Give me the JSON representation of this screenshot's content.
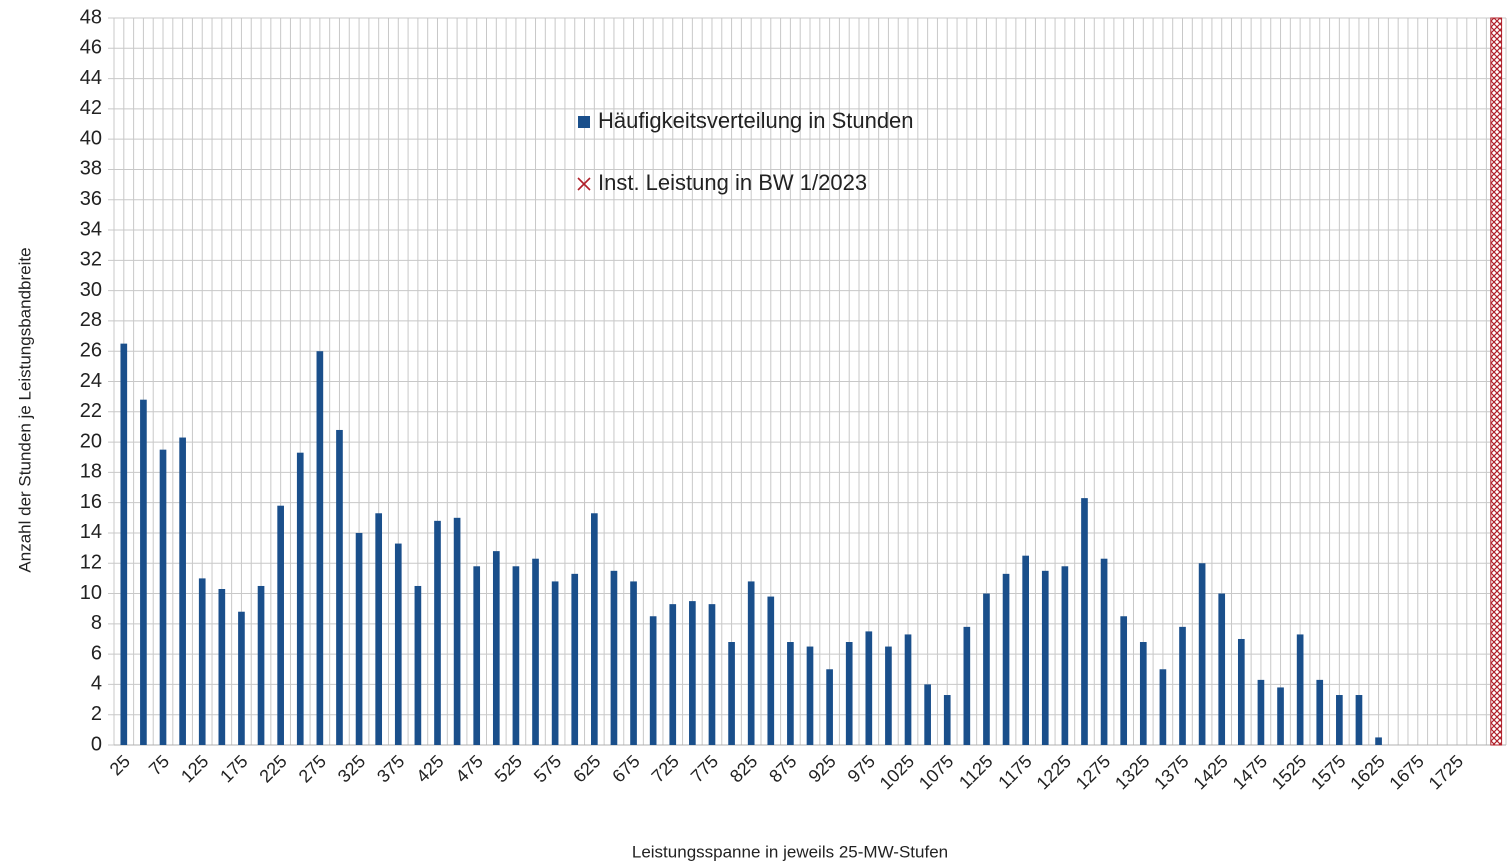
{
  "chart_data": {
    "type": "bar",
    "x_label": "Leistungsspanne in jeweils 25-MW-Stufen",
    "y_label": "Anzahl der Stunden je Leistungsbandbreite",
    "categories": [
      "25",
      null,
      "75",
      null,
      "125",
      null,
      "175",
      null,
      "225",
      null,
      "275",
      null,
      "325",
      null,
      "375",
      null,
      "425",
      null,
      "475",
      null,
      "525",
      null,
      "575",
      null,
      "625",
      null,
      "675",
      null,
      "725",
      null,
      "775",
      null,
      "825",
      null,
      "875",
      null,
      "925",
      null,
      "975",
      null,
      "1025",
      null,
      "1075",
      null,
      "1125",
      null,
      "1175",
      null,
      "1225",
      null,
      "1275",
      null,
      "1325",
      null,
      "1375",
      null,
      "1425",
      null,
      "1475",
      null,
      "1525",
      null,
      "1575",
      null,
      "1625",
      null,
      "1675",
      null,
      "1725",
      null,
      null
    ],
    "series": [
      {
        "name": "Häufigkeitsverteilung in Stunden",
        "color": "#1a4f8b",
        "marker": "square",
        "values": [
          26.5,
          22.8,
          19.5,
          20.3,
          11,
          10.3,
          8.8,
          10.5,
          15.8,
          19.3,
          26,
          20.8,
          14,
          15.3,
          13.3,
          10.5,
          14.8,
          15,
          11.8,
          12.8,
          11.8,
          12.3,
          10.8,
          11.3,
          15.3,
          11.5,
          10.8,
          8.5,
          9.3,
          9.5,
          9.3,
          6.8,
          10.8,
          9.8,
          6.8,
          6.5,
          5,
          6.8,
          7.5,
          6.5,
          7.3,
          4,
          3.3,
          7.8,
          10,
          11.3,
          12.5,
          11.5,
          11.8,
          16.3,
          12.3,
          8.5,
          6.8,
          5,
          7.8,
          12,
          10,
          7,
          4.3,
          3.8,
          7.3,
          4.3,
          3.3,
          3.3,
          0.5,
          null,
          null,
          null,
          null,
          null,
          null
        ]
      },
      {
        "name": "Inst. Leistung in BW 1/2023",
        "color": "#b0202a",
        "marker": "crosshatch",
        "values": [
          null,
          null,
          null,
          null,
          null,
          null,
          null,
          null,
          null,
          null,
          null,
          null,
          null,
          null,
          null,
          null,
          null,
          null,
          null,
          null,
          null,
          null,
          null,
          null,
          null,
          null,
          null,
          null,
          null,
          null,
          null,
          null,
          null,
          null,
          null,
          null,
          null,
          null,
          null,
          null,
          null,
          null,
          null,
          null,
          null,
          null,
          null,
          null,
          null,
          null,
          null,
          null,
          null,
          null,
          null,
          null,
          null,
          null,
          null,
          null,
          null,
          null,
          null,
          null,
          null,
          null,
          null,
          null,
          null,
          null,
          48
        ]
      }
    ],
    "ylim": [
      0,
      48
    ],
    "yticks": [
      0,
      2,
      4,
      6,
      8,
      10,
      12,
      14,
      16,
      18,
      20,
      22,
      24,
      26,
      28,
      30,
      32,
      34,
      36,
      38,
      40,
      42,
      44,
      46,
      48
    ],
    "grid": true,
    "legend_position": "top"
  }
}
